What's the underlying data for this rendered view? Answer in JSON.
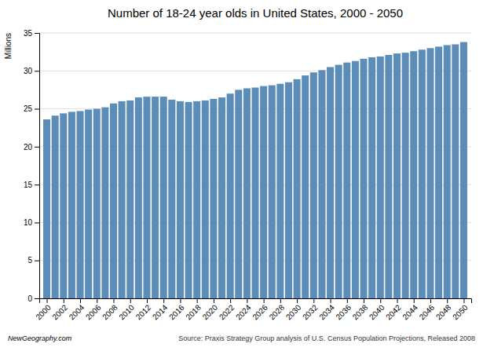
{
  "chart_data": {
    "type": "bar",
    "title": "Number of 18-24 year olds in United States, 2000 - 2050",
    "ylabel": "Millions",
    "annotations": [
      "NewGeography.com",
      "Source: Praxis Strategy Group analysis of U.S. Census Population Projections, Released 2008"
    ],
    "x": [
      2000,
      2001,
      2002,
      2003,
      2004,
      2005,
      2006,
      2007,
      2008,
      2009,
      2010,
      2011,
      2012,
      2013,
      2014,
      2015,
      2016,
      2017,
      2018,
      2019,
      2020,
      2021,
      2022,
      2023,
      2024,
      2025,
      2026,
      2027,
      2028,
      2029,
      2030,
      2031,
      2032,
      2033,
      2034,
      2035,
      2036,
      2037,
      2038,
      2039,
      2040,
      2041,
      2042,
      2043,
      2044,
      2045,
      2046,
      2047,
      2048,
      2049,
      2050
    ],
    "values": [
      23.6,
      24.1,
      24.4,
      24.6,
      24.7,
      24.9,
      25.0,
      25.2,
      25.7,
      26.0,
      26.1,
      26.5,
      26.6,
      26.6,
      26.6,
      26.2,
      26.0,
      25.9,
      26.0,
      26.1,
      26.3,
      26.5,
      27.0,
      27.5,
      27.7,
      27.8,
      28.0,
      28.1,
      28.3,
      28.5,
      28.9,
      29.4,
      29.8,
      30.1,
      30.5,
      30.8,
      31.1,
      31.3,
      31.6,
      31.8,
      31.9,
      32.1,
      32.3,
      32.4,
      32.6,
      32.8,
      33.0,
      33.2,
      33.4,
      33.5,
      33.8
    ],
    "color": "#5b8db8",
    "xlim": [
      1999.1,
      2050.9
    ],
    "xticks": [
      2000,
      2002,
      2004,
      2006,
      2008,
      2010,
      2012,
      2014,
      2016,
      2018,
      2020,
      2022,
      2024,
      2026,
      2028,
      2030,
      2032,
      2034,
      2036,
      2038,
      2040,
      2042,
      2044,
      2046,
      2048,
      2050
    ],
    "ylim": [
      0,
      35
    ],
    "yticks": [
      0,
      5,
      10,
      15,
      20,
      25,
      30,
      35
    ],
    "grid": true
  }
}
